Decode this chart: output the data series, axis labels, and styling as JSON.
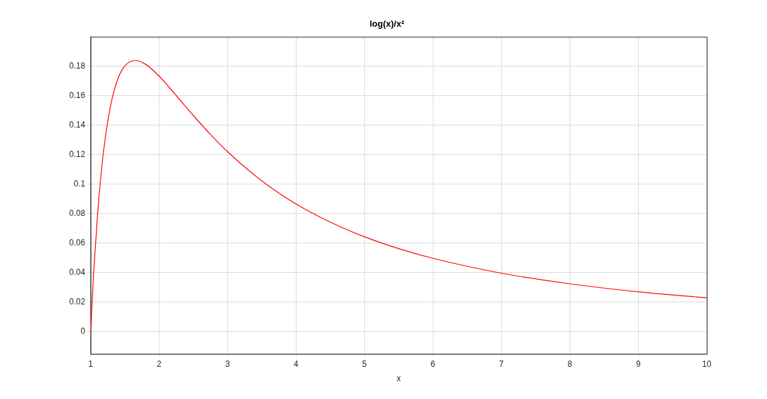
{
  "chart_data": {
    "type": "line",
    "title": "log(x)/x²",
    "xlabel": "x",
    "x": [
      1,
      1.02,
      1.05,
      1.1,
      1.15,
      1.2,
      1.3,
      1.4,
      1.5,
      1.65,
      1.8,
      2,
      2.25,
      2.5,
      2.75,
      3,
      3.5,
      4,
      4.5,
      5,
      5.5,
      6,
      7,
      8,
      9,
      10
    ],
    "series": [
      {
        "color": "#ff0000",
        "values": [
          0,
          0.019,
          0.0443,
          0.0788,
          0.1057,
          0.1266,
          0.1552,
          0.1717,
          0.1802,
          0.1839,
          0.1814,
          0.1733,
          0.1602,
          0.1466,
          0.1338,
          0.1221,
          0.1023,
          0.0866,
          0.0743,
          0.0644,
          0.0564,
          0.0498,
          0.0397,
          0.0325,
          0.0271,
          0.023
        ]
      }
    ],
    "xlim": [
      1,
      10
    ],
    "xticks": [
      1,
      2,
      3,
      4,
      5,
      6,
      7,
      8,
      9,
      10
    ],
    "ylim": [
      -0.015,
      0.2
    ],
    "yticks": [
      0,
      0.02,
      0.04,
      0.06,
      0.08,
      0.1,
      0.12,
      0.14,
      0.16,
      0.18
    ],
    "grid": true,
    "legend": false,
    "marker": "none",
    "line_style": "solid"
  }
}
